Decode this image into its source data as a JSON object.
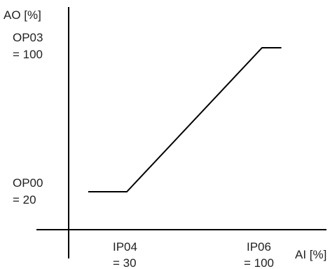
{
  "chart_data": {
    "type": "line",
    "xlabel": "AI [%]",
    "ylabel": "AO [%]",
    "x": [
      10,
      30,
      100,
      110
    ],
    "y": [
      20,
      20,
      100,
      100
    ],
    "annotations": {
      "y_high": {
        "line1": "OP03",
        "line2": "= 100"
      },
      "y_low": {
        "line1": "OP00",
        "line2": "= 20"
      },
      "x_low": {
        "line1": "IP04",
        "line2": "= 30"
      },
      "x_high": {
        "line1": "IP06",
        "line2": "= 100"
      }
    },
    "grid": false,
    "legend": "none"
  },
  "colors": {
    "axis": "#000000",
    "line": "#000000",
    "text": "#222222"
  }
}
